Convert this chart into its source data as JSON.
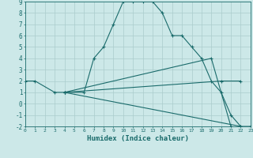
{
  "xlabel": "Humidex (Indice chaleur)",
  "background_color": "#cce8e8",
  "grid_color": "#b0d0d0",
  "line_color": "#1a6b6b",
  "xmin": 0,
  "xmax": 23,
  "ymin": -2,
  "ymax": 9,
  "series": [
    {
      "x": [
        0,
        1,
        3,
        4,
        6,
        7,
        8,
        9,
        10,
        11,
        12,
        13,
        14,
        15,
        16,
        17,
        18,
        19,
        20,
        21,
        22,
        23
      ],
      "y": [
        2,
        2,
        1,
        1,
        1,
        4,
        5,
        7,
        9,
        9,
        9,
        9,
        8,
        6,
        6,
        5,
        4,
        2,
        1,
        -1,
        -2,
        -2
      ]
    },
    {
      "x": [
        4,
        22
      ],
      "y": [
        1,
        -2
      ]
    },
    {
      "x": [
        4,
        20,
        22
      ],
      "y": [
        1,
        2,
        2
      ]
    },
    {
      "x": [
        4,
        19,
        21
      ],
      "y": [
        1,
        4,
        -2
      ]
    }
  ],
  "xticks": [
    0,
    1,
    2,
    3,
    4,
    5,
    6,
    7,
    8,
    9,
    10,
    11,
    12,
    13,
    14,
    15,
    16,
    17,
    18,
    19,
    20,
    21,
    22,
    23
  ],
  "yticks": [
    -2,
    -1,
    0,
    1,
    2,
    3,
    4,
    5,
    6,
    7,
    8,
    9
  ]
}
